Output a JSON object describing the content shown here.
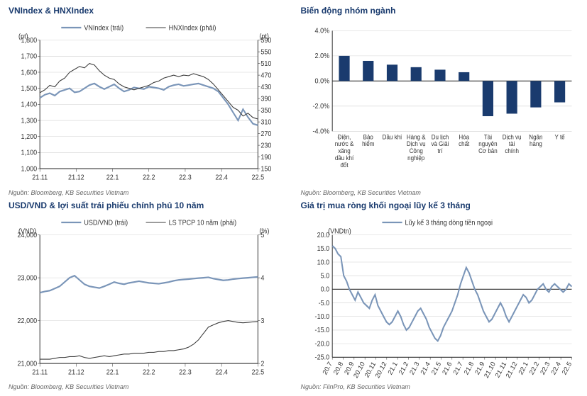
{
  "panels": {
    "topleft": {
      "title": "VNIndex & HNXIndex",
      "source": "Nguồn: Bloomberg, KB Securities Vietnam",
      "left_unit": "(pt)",
      "right_unit": "(pt)",
      "legend": [
        {
          "label": "VNIndex (trái)",
          "color": "#7a95b8",
          "width": 2
        },
        {
          "label": "HNXIndex (phải)",
          "color": "#3a3a3a",
          "width": 1
        }
      ],
      "xticks": [
        "21.11",
        "21.12",
        "22.1",
        "22.2",
        "22.3",
        "22.4",
        "22.5"
      ],
      "yleft": {
        "min": 1000,
        "max": 1800,
        "step": 100
      },
      "yright": {
        "min": 150,
        "max": 590,
        "step": 40
      },
      "series": {
        "vn": {
          "color": "#7a95b8",
          "width": 2,
          "y": [
            1440,
            1460,
            1470,
            1455,
            1480,
            1490,
            1500,
            1475,
            1480,
            1500,
            1520,
            1530,
            1510,
            1495,
            1510,
            1525,
            1500,
            1480,
            1490,
            1505,
            1500,
            1495,
            1510,
            1505,
            1500,
            1490,
            1510,
            1520,
            1525,
            1515,
            1520,
            1525,
            1530,
            1520,
            1510,
            1500,
            1480,
            1440,
            1400,
            1350,
            1300,
            1370,
            1320,
            1280,
            1270
          ]
        },
        "hnx": {
          "color": "#3a3a3a",
          "width": 1,
          "axis": "right",
          "y": [
            410,
            420,
            435,
            430,
            450,
            460,
            480,
            490,
            500,
            495,
            510,
            505,
            485,
            470,
            460,
            455,
            440,
            430,
            425,
            420,
            425,
            430,
            435,
            445,
            450,
            460,
            465,
            470,
            465,
            470,
            468,
            475,
            470,
            465,
            455,
            440,
            420,
            400,
            380,
            360,
            350,
            330,
            340,
            325,
            320
          ]
        }
      }
    },
    "topright": {
      "title": "Biến động nhóm ngành",
      "source": "Nguồn: Bloomberg, KB Securities Vietnam",
      "ymin": -4.0,
      "ymax": 4.0,
      "ystep": 2.0,
      "bar_color": "#1a3b6e",
      "categories": [
        "Điện, nước & xăng dầu khí đốt",
        "Bảo hiểm",
        "Dầu khí",
        "Hàng & Dịch vụ Công nghiệp",
        "Du lịch và Giải trí",
        "Hóa chất",
        "Tài nguyên Cơ bản",
        "Dịch vụ tài chính",
        "Ngân hàng",
        "Y tế"
      ],
      "values": [
        2.0,
        1.6,
        1.3,
        1.1,
        0.9,
        0.7,
        -2.8,
        -2.6,
        -2.1,
        -1.7
      ]
    },
    "bottomleft": {
      "title": "USD/VND & lợi suất trái phiếu chính phủ 10 năm",
      "source": "Nguồn: Bloomberg, KB Securities Vietnam",
      "left_unit": "(VND)",
      "right_unit": "(%)",
      "legend": [
        {
          "label": "USD/VND (trái)",
          "color": "#7a95b8",
          "width": 2
        },
        {
          "label": "LS TPCP 10 năm (phải)",
          "color": "#3a3a3a",
          "width": 1
        }
      ],
      "xticks": [
        "21.11",
        "21.12",
        "22.1",
        "22.2",
        "22.3",
        "22.4",
        "22.5"
      ],
      "yleft": {
        "min": 21000,
        "max": 24000,
        "step": 1000
      },
      "yright": {
        "min": 2.0,
        "max": 5.0,
        "step": 1.0
      },
      "series": {
        "usd": {
          "color": "#7a95b8",
          "width": 2,
          "y": [
            22650,
            22680,
            22700,
            22750,
            22800,
            22900,
            23000,
            23050,
            22950,
            22850,
            22800,
            22780,
            22760,
            22800,
            22850,
            22900,
            22870,
            22850,
            22880,
            22900,
            22920,
            22900,
            22880,
            22870,
            22860,
            22880,
            22900,
            22930,
            22950,
            22960,
            22970,
            22980,
            22990,
            23000,
            23010,
            22980,
            22960,
            22940,
            22950,
            22970,
            22980,
            22990,
            23000,
            23010,
            23020
          ]
        },
        "bond": {
          "color": "#3a3a3a",
          "width": 1,
          "axis": "right",
          "y": [
            2.1,
            2.1,
            2.1,
            2.12,
            2.14,
            2.14,
            2.16,
            2.16,
            2.18,
            2.14,
            2.12,
            2.14,
            2.16,
            2.18,
            2.16,
            2.18,
            2.2,
            2.22,
            2.22,
            2.24,
            2.24,
            2.24,
            2.26,
            2.26,
            2.28,
            2.28,
            2.3,
            2.3,
            2.32,
            2.34,
            2.38,
            2.45,
            2.55,
            2.7,
            2.85,
            2.9,
            2.95,
            2.98,
            3.0,
            2.98,
            2.96,
            2.95,
            2.96,
            2.97,
            2.98
          ]
        }
      }
    },
    "bottomright": {
      "title": "Giá trị mua ròng khối ngoại lũy kế 3 tháng",
      "source": "Nguồn: FiinPro, KB Securities Vietnam",
      "left_unit": "(VNDtn)",
      "legend": [
        {
          "label": "Lũy kế 3 tháng dòng tiền ngoại",
          "color": "#7a95b8",
          "width": 2
        }
      ],
      "xticks": [
        "20.7",
        "20.8",
        "20.9",
        "20.10",
        "20.11",
        "20.12",
        "21.1",
        "21.2",
        "21.3",
        "21.4",
        "21.5",
        "21.6",
        "21.7",
        "21.8",
        "21.9",
        "21.10",
        "21.11",
        "21.12",
        "22.1",
        "22.2",
        "22.3",
        "22.4",
        "22.5"
      ],
      "ymin": -25,
      "ymax": 20,
      "ystep": 5,
      "series": {
        "flow": {
          "color": "#7a95b8",
          "width": 2,
          "y": [
            16,
            15,
            13,
            12,
            5,
            3,
            0,
            -2,
            -4,
            -1,
            -3,
            -5,
            -6,
            -7,
            -4,
            -2,
            -6,
            -8,
            -10,
            -12,
            -13,
            -12,
            -10,
            -8,
            -10,
            -13,
            -15,
            -14,
            -12,
            -10,
            -8,
            -7,
            -9,
            -11,
            -14,
            -16,
            -18,
            -19,
            -17,
            -14,
            -12,
            -10,
            -8,
            -5,
            -2,
            2,
            5,
            8,
            6,
            3,
            0,
            -2,
            -5,
            -8,
            -10,
            -12,
            -11,
            -9,
            -7,
            -5,
            -7,
            -10,
            -12,
            -10,
            -8,
            -6,
            -4,
            -2,
            -3,
            -5,
            -4,
            -2,
            0,
            1,
            2,
            0,
            -1,
            1,
            2,
            1,
            0,
            -1,
            0,
            2,
            1
          ]
        }
      }
    }
  },
  "colors": {
    "title": "#1a3b6e",
    "bar": "#1a3b6e",
    "line_blue": "#7a95b8",
    "line_black": "#3a3a3a",
    "grid": "#d0d0d0",
    "axis": "#333333"
  }
}
